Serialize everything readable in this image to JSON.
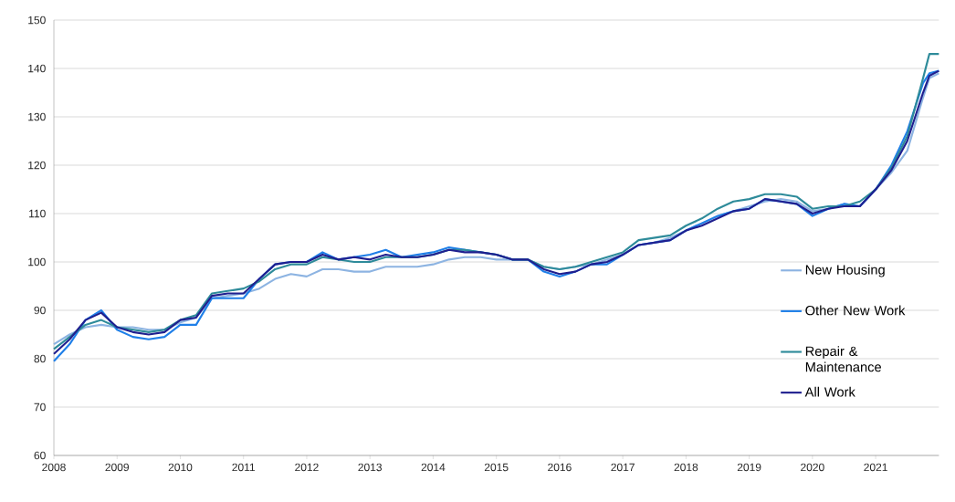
{
  "chart_data": {
    "type": "line",
    "x": [
      2008,
      2008.25,
      2008.5,
      2008.75,
      2009,
      2009.25,
      2009.5,
      2009.75,
      2010,
      2010.25,
      2010.5,
      2010.75,
      2011,
      2011.25,
      2011.5,
      2011.75,
      2012,
      2012.25,
      2012.5,
      2012.75,
      2013,
      2013.25,
      2013.5,
      2013.75,
      2014,
      2014.25,
      2014.5,
      2014.75,
      2015,
      2015.25,
      2015.5,
      2015.75,
      2016,
      2016.25,
      2016.5,
      2016.75,
      2017,
      2017.25,
      2017.5,
      2017.75,
      2018,
      2018.25,
      2018.5,
      2018.75,
      2019,
      2019.25,
      2019.5,
      2019.75,
      2020,
      2020.25,
      2020.5,
      2020.75,
      2021,
      2021.25,
      2021.5,
      2021.75,
      2021.85,
      2022
    ],
    "series": [
      {
        "name": "New Housing",
        "color": "#8db4e2",
        "values": [
          83,
          85,
          86.5,
          87,
          86.5,
          86.5,
          86,
          86,
          87.5,
          88.5,
          92.5,
          93,
          93.5,
          94.5,
          96.5,
          97.5,
          97,
          98.5,
          98.5,
          98,
          98,
          99,
          99,
          99,
          99.5,
          100.5,
          101,
          101,
          100.5,
          100.5,
          100.5,
          99,
          98.5,
          99,
          99.5,
          100.5,
          101.5,
          103.5,
          104,
          105,
          106.5,
          108,
          109.5,
          110.5,
          111.5,
          112.5,
          113,
          112.5,
          110.5,
          111,
          112,
          111.5,
          115,
          118.5,
          123,
          134,
          138,
          139
        ]
      },
      {
        "name": "Other New Work",
        "color": "#1f7fe8",
        "values": [
          79.5,
          83,
          88,
          90,
          86,
          84.5,
          84,
          84.5,
          87,
          87,
          92.5,
          92.5,
          92.5,
          96.5,
          99.5,
          100,
          100,
          102,
          100.5,
          101,
          101.5,
          102.5,
          101,
          101.5,
          102,
          103,
          102.5,
          102,
          101.5,
          100.5,
          100.5,
          98,
          97,
          98,
          99.5,
          99.5,
          101.5,
          103.5,
          104,
          104.5,
          106.5,
          108,
          109.5,
          110.5,
          111,
          113,
          112.5,
          112,
          109.5,
          111,
          112,
          111.5,
          115,
          120,
          127,
          137,
          139,
          139.5
        ]
      },
      {
        "name": "Repair & Maintenance",
        "color": "#2e8b9a",
        "values": [
          82,
          84.5,
          87,
          88,
          86.5,
          86,
          85.5,
          86,
          88,
          89,
          93.5,
          94,
          94.5,
          96,
          98.5,
          99.5,
          99.5,
          101,
          100.5,
          100,
          100,
          101,
          101,
          101,
          101.5,
          102.5,
          102.5,
          102,
          101.5,
          100.5,
          100.5,
          99,
          98.5,
          99,
          100,
          101,
          102,
          104.5,
          105,
          105.5,
          107.5,
          109,
          111,
          112.5,
          113,
          114,
          114,
          113.5,
          111,
          111.5,
          111.5,
          112.5,
          115,
          119.5,
          126,
          138,
          143,
          143
        ]
      },
      {
        "name": "All Work",
        "color": "#1f1f8f",
        "values": [
          81,
          84,
          88,
          89.5,
          86.5,
          85.5,
          85,
          85.5,
          88,
          88.5,
          93,
          93.5,
          93.5,
          96.5,
          99.5,
          100,
          100,
          101.5,
          100.5,
          101,
          100.5,
          101.5,
          101,
          101,
          101.5,
          102.5,
          102,
          102,
          101.5,
          100.5,
          100.5,
          98.5,
          97.5,
          98,
          99.5,
          100,
          101.5,
          103.5,
          104,
          104.5,
          106.5,
          107.5,
          109,
          110.5,
          111,
          113,
          112.5,
          112,
          110,
          111,
          111.5,
          111.5,
          115,
          119,
          125,
          135,
          138.5,
          139.5
        ]
      }
    ],
    "xlim": [
      2008,
      2022
    ],
    "xticks": [
      2008,
      2009,
      2010,
      2011,
      2012,
      2013,
      2014,
      2015,
      2016,
      2017,
      2018,
      2019,
      2020,
      2021
    ],
    "ylim": [
      60,
      150
    ],
    "yticks": [
      60,
      70,
      80,
      90,
      100,
      110,
      120,
      130,
      140,
      150
    ],
    "grid": "y",
    "legend": "right",
    "line_style": "solid"
  }
}
